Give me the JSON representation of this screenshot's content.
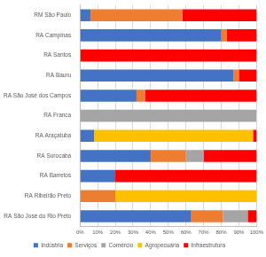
{
  "chart_data": {
    "type": "bar",
    "orientation": "horizontal",
    "stacked": true,
    "grid": true,
    "legend": "bottom",
    "categories": [
      "RM São Paulo",
      "RA Campinas",
      "RA Santos",
      "RA Bauru",
      "RA São José dos Campos",
      "RA Franca",
      "RA Araçatuba",
      "RA Sorocaba",
      "RA Barretos",
      "RA Ribeirão Preto",
      "RA São José do Rio Preto"
    ],
    "series": [
      {
        "name": "Indústria",
        "color": "#4472c4",
        "values": [
          6,
          80,
          0,
          87,
          32,
          0,
          8,
          40,
          20,
          0,
          63
        ]
      },
      {
        "name": "Serviços",
        "color": "#ed7d31",
        "values": [
          52,
          3,
          0,
          3,
          5,
          0,
          0,
          20,
          0,
          20,
          18
        ]
      },
      {
        "name": "Comércio",
        "color": "#a5a5a5",
        "values": [
          0,
          0,
          0,
          0,
          0,
          100,
          0,
          10,
          0,
          0,
          14
        ]
      },
      {
        "name": "Agropecuária",
        "color": "#ffc000",
        "values": [
          0,
          0,
          0,
          0,
          0,
          0,
          90,
          0,
          0,
          80,
          0
        ]
      },
      {
        "name": "Infraestrutura",
        "color": "#ff0000",
        "values": [
          42,
          17,
          100,
          10,
          63,
          0,
          2,
          30,
          80,
          0,
          5
        ]
      }
    ],
    "xlim": [
      0,
      100
    ],
    "xticks": [
      {
        "value": 0,
        "label": "0%"
      },
      {
        "value": 10,
        "label": "10%"
      },
      {
        "value": 20,
        "label": "20%"
      },
      {
        "value": 30,
        "label": "30%"
      },
      {
        "value": 40,
        "label": "40%"
      },
      {
        "value": 50,
        "label": "50%"
      },
      {
        "value": 60,
        "label": "60%"
      },
      {
        "value": 70,
        "label": "70%"
      },
      {
        "value": 80,
        "label": "80%"
      },
      {
        "value": 90,
        "label": "90%"
      },
      {
        "value": 100,
        "label": "100%"
      }
    ]
  }
}
